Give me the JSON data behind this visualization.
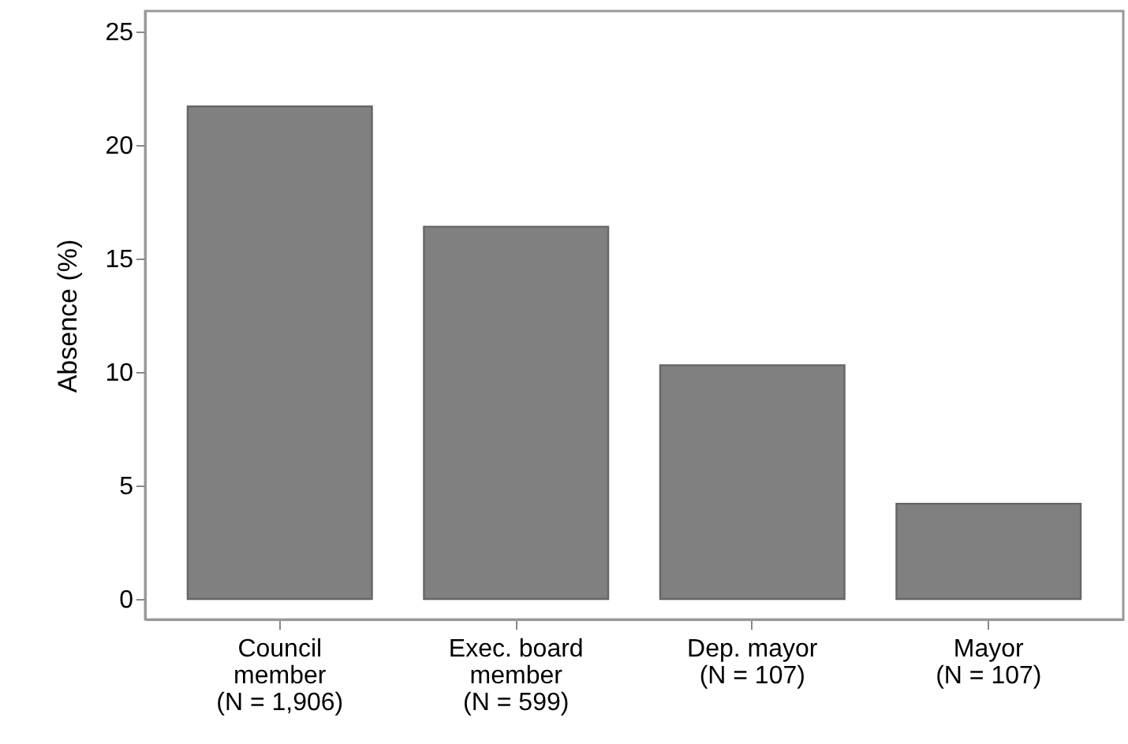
{
  "chart_data": {
    "type": "bar",
    "ylabel": "Absence (%)",
    "categories": [
      "Council\nmember\n(N = 1,906)",
      "Exec. board\nmember\n(N = 599)",
      "Dep. mayor\n(N = 107)",
      "Mayor\n(N = 107)"
    ],
    "values": [
      21.7,
      16.4,
      10.3,
      4.2
    ],
    "color": "#808080",
    "ylim": [
      -0.9,
      25.9
    ],
    "yticks": [
      0,
      5,
      10,
      15,
      20,
      25
    ],
    "grid": false,
    "legend": false
  }
}
